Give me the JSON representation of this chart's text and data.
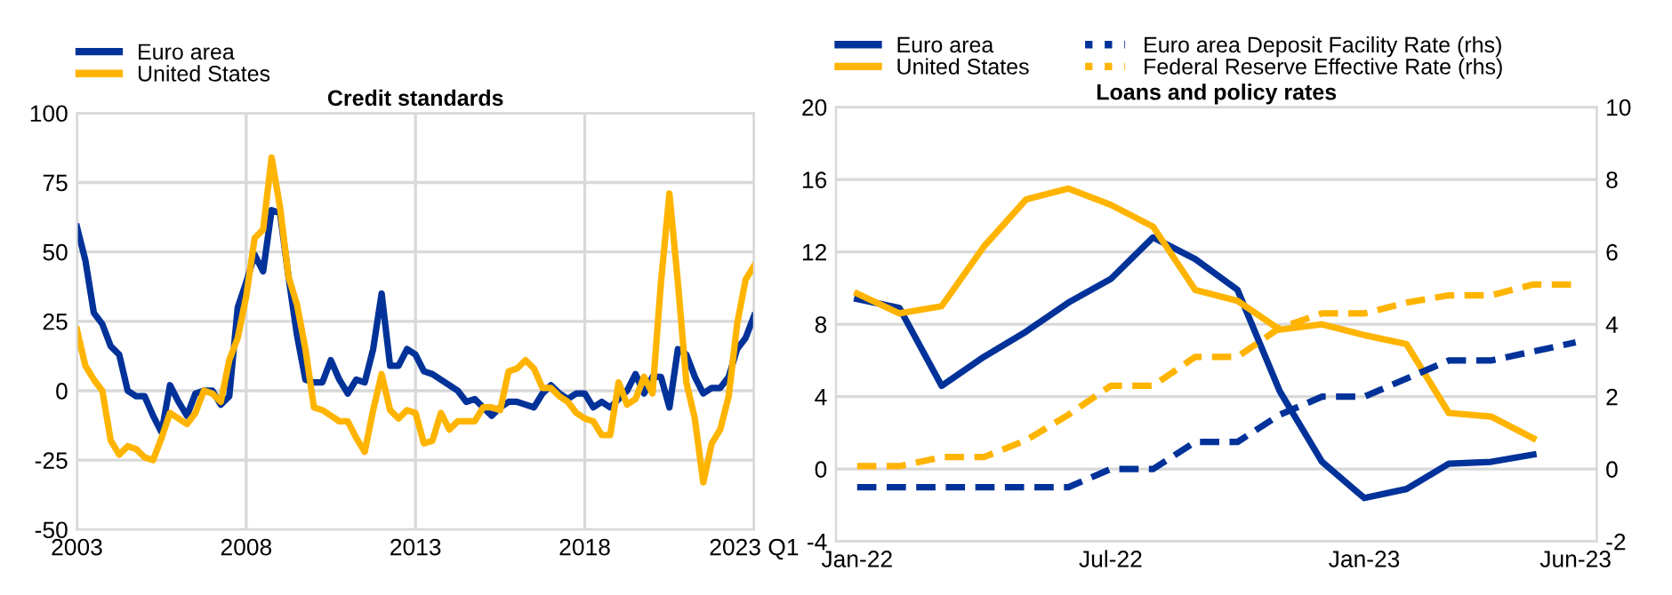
{
  "chart_data": [
    {
      "type": "line",
      "title": "Credit standards",
      "x": [
        2003,
        2003.25,
        2003.5,
        2003.75,
        2004,
        2004.25,
        2004.5,
        2004.75,
        2005,
        2005.25,
        2005.5,
        2005.75,
        2006,
        2006.25,
        2006.5,
        2006.75,
        2007,
        2007.25,
        2007.5,
        2007.75,
        2008,
        2008.25,
        2008.5,
        2008.75,
        2009,
        2009.25,
        2009.5,
        2009.75,
        2010,
        2010.25,
        2010.5,
        2010.75,
        2011,
        2011.25,
        2011.5,
        2011.75,
        2012,
        2012.25,
        2012.5,
        2012.75,
        2013,
        2013.25,
        2013.5,
        2013.75,
        2014,
        2014.25,
        2014.5,
        2014.75,
        2015,
        2015.25,
        2015.5,
        2015.75,
        2016,
        2016.25,
        2016.5,
        2016.75,
        2017,
        2017.25,
        2017.5,
        2017.75,
        2018,
        2018.25,
        2018.5,
        2018.75,
        2019,
        2019.25,
        2019.5,
        2019.75,
        2020,
        2020.25,
        2020.5,
        2020.75,
        2021,
        2021.25,
        2021.5,
        2021.75,
        2022,
        2022.25,
        2022.5,
        2022.75,
        2023
      ],
      "series": [
        {
          "name": "Euro area",
          "color": "#003299",
          "values": [
            59,
            47,
            28,
            24,
            16,
            13,
            0,
            -2,
            -2,
            -9,
            -15,
            2,
            -4,
            -9,
            -1,
            0,
            0,
            -5,
            -2,
            30,
            39,
            49,
            43,
            65,
            64,
            41,
            20,
            4,
            3,
            3,
            11,
            4,
            -1,
            4,
            3,
            15,
            35,
            9,
            9,
            15,
            13,
            7,
            6,
            4,
            2,
            0,
            -4,
            -3,
            -6,
            -9,
            -6,
            -4,
            -4,
            -5,
            -6,
            -1,
            2,
            -1,
            -3,
            -1,
            -1,
            -6,
            -4,
            -6,
            -3,
            0,
            6,
            -1,
            5,
            5,
            -6,
            15,
            13,
            5,
            -1,
            1,
            1,
            5,
            15,
            19,
            27
          ]
        },
        {
          "name": "United States",
          "color": "#ffb400",
          "values": [
            22,
            9,
            4,
            0,
            -18,
            -23,
            -20,
            -21,
            -24,
            -25,
            -17,
            -8,
            -10,
            -12,
            -8,
            0,
            -1,
            -4,
            11,
            19,
            34,
            55,
            58,
            84,
            66,
            41,
            31,
            15,
            -6,
            -7,
            -9,
            -11,
            -11,
            -17,
            -22,
            -7,
            6,
            -7,
            -10,
            -7,
            -8,
            -19,
            -18,
            -8,
            -14,
            -11,
            -11,
            -11,
            -6,
            -6,
            -7,
            7,
            8,
            11,
            8,
            1,
            1,
            -2,
            -4,
            -8,
            -10,
            -11,
            -16,
            -16,
            3,
            -5,
            -3,
            5,
            -1,
            39,
            71,
            39,
            3,
            -10,
            -33,
            -19,
            -14,
            -2,
            24,
            40,
            45
          ]
        }
      ],
      "xlim": [
        2003,
        2023
      ],
      "xticks": [
        2003,
        2008,
        2013,
        2018,
        {
          "value": 2023,
          "label": "2023 Q1"
        }
      ],
      "ylim": [
        -50,
        100
      ],
      "yticks": [
        -50,
        -25,
        0,
        25,
        50,
        75,
        100
      ],
      "grid": true,
      "legend": "top left",
      "line_style": "solid",
      "marker": "none"
    },
    {
      "type": "line",
      "title": "Loans and policy rates",
      "categories": [
        "Jan-22",
        null,
        null,
        null,
        null,
        null,
        "Jul-22",
        null,
        null,
        null,
        null,
        null,
        "Jan-23",
        null,
        null,
        null,
        null,
        "Jun-23"
      ],
      "series": [
        {
          "name": "Euro area",
          "color": "#003299",
          "values": [
            9.4,
            8.9,
            4.6,
            6.2,
            7.6,
            9.2,
            10.5,
            12.8,
            11.6,
            9.9,
            4.3,
            0.4,
            -1.6,
            -1.1,
            0.3,
            0.4,
            0.8,
            null
          ]
        },
        {
          "name": "United States",
          "color": "#ffb400",
          "values": [
            9.7,
            8.6,
            9.0,
            12.3,
            14.9,
            15.5,
            14.6,
            13.4,
            9.9,
            9.3,
            7.7,
            8.0,
            7.4,
            6.9,
            3.1,
            2.9,
            1.7,
            null
          ]
        },
        {
          "name": "Euro area Deposit Facility Rate (rhs)",
          "color": "#003299",
          "axis": "y2",
          "line_style": "dashed",
          "values": [
            -0.5,
            -0.5,
            -0.5,
            -0.5,
            -0.5,
            -0.5,
            0,
            0,
            0.75,
            0.75,
            1.5,
            2.0,
            2.0,
            2.5,
            3.0,
            3.0,
            3.25,
            3.5
          ]
        },
        {
          "name": "Federal Reserve Effective Rate (rhs)",
          "color": "#ffb400",
          "axis": "y2",
          "line_style": "dashed",
          "values": [
            0.08,
            0.08,
            0.33,
            0.33,
            0.8,
            1.5,
            2.3,
            2.3,
            3.1,
            3.1,
            3.9,
            4.3,
            4.3,
            4.6,
            4.8,
            4.8,
            5.1,
            5.1
          ]
        }
      ],
      "ylim": [
        -4,
        20
      ],
      "yticks": [
        -4,
        0,
        4,
        8,
        12,
        16,
        20
      ],
      "y2lim": [
        -2,
        10
      ],
      "y2ticks": [
        -2,
        0,
        2,
        4,
        6,
        8,
        10
      ],
      "grid": true,
      "legend": "top left",
      "line_style": "solid",
      "marker": "none"
    }
  ]
}
